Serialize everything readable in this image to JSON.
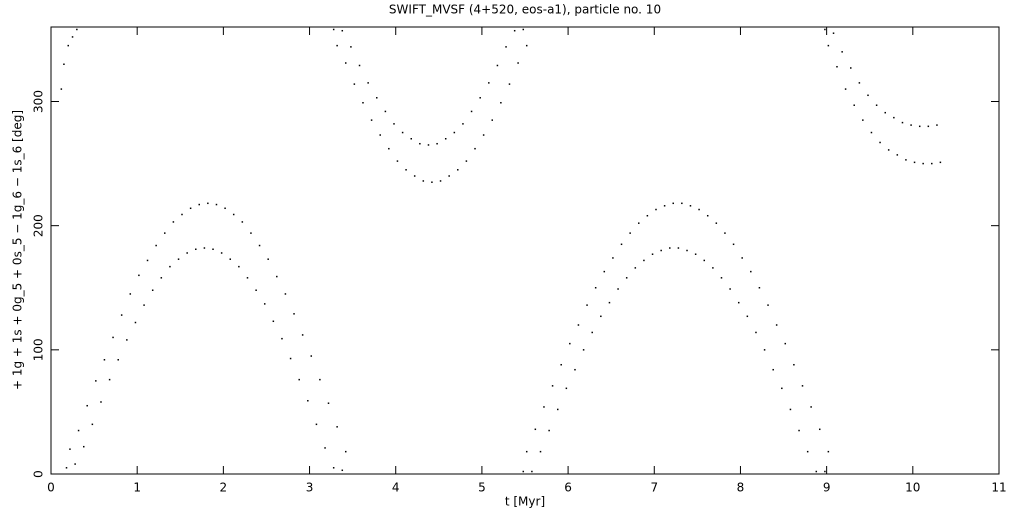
{
  "chart_data": {
    "type": "scatter",
    "title": "SWIFT_MVSF (4+520, eos-a1), particle no. 10",
    "xlabel": "t [Myr]",
    "ylabel": "+ 1g + 1s + 0g_5 + 0s_5 − 1g_6 − 1s_6 [deg]",
    "color": "#000000",
    "xlim": [
      0,
      11
    ],
    "ylim": [
      0,
      360
    ],
    "xticks": [
      0,
      1,
      2,
      3,
      4,
      5,
      6,
      7,
      8,
      9,
      10,
      11
    ],
    "yticks": [
      0,
      100,
      200,
      300
    ],
    "x": [
      0.12,
      0.15,
      0.2,
      0.25,
      0.3,
      0.18,
      0.22,
      0.28,
      0.32,
      0.38,
      0.42,
      0.48,
      0.52,
      0.58,
      0.62,
      0.68,
      0.72,
      0.78,
      0.82,
      0.88,
      0.92,
      0.98,
      1.02,
      1.08,
      1.12,
      1.18,
      1.22,
      1.28,
      1.32,
      1.38,
      1.42,
      1.48,
      1.52,
      1.58,
      1.62,
      1.68,
      1.72,
      1.78,
      1.82,
      1.88,
      1.92,
      1.98,
      2.02,
      2.08,
      2.12,
      2.18,
      2.22,
      2.28,
      2.32,
      2.38,
      2.42,
      2.48,
      2.52,
      2.58,
      2.62,
      2.68,
      2.72,
      2.78,
      2.82,
      2.88,
      2.92,
      2.98,
      3.02,
      3.08,
      3.12,
      3.18,
      3.22,
      3.28,
      3.32,
      3.38,
      3.42,
      3.28,
      3.32,
      3.38,
      3.42,
      3.48,
      3.52,
      3.58,
      3.62,
      3.68,
      3.72,
      3.78,
      3.82,
      3.88,
      3.92,
      3.98,
      4.02,
      4.08,
      4.12,
      4.18,
      4.22,
      4.28,
      4.32,
      4.38,
      4.42,
      4.48,
      4.52,
      4.58,
      4.62,
      4.68,
      4.72,
      4.78,
      4.82,
      4.88,
      4.92,
      4.98,
      5.02,
      5.08,
      5.12,
      5.18,
      5.22,
      5.28,
      5.32,
      5.38,
      5.42,
      5.48,
      5.52,
      5.48,
      5.52,
      5.58,
      5.62,
      5.68,
      5.72,
      5.78,
      5.82,
      5.88,
      5.92,
      5.98,
      6.02,
      6.08,
      6.12,
      6.18,
      6.22,
      6.28,
      6.32,
      6.38,
      6.42,
      6.48,
      6.52,
      6.58,
      6.62,
      6.68,
      6.72,
      6.78,
      6.82,
      6.88,
      6.92,
      6.98,
      7.02,
      7.08,
      7.12,
      7.18,
      7.22,
      7.28,
      7.32,
      7.38,
      7.42,
      7.48,
      7.52,
      7.58,
      7.62,
      7.68,
      7.72,
      7.78,
      7.82,
      7.88,
      7.92,
      7.98,
      8.02,
      8.08,
      8.12,
      8.18,
      8.22,
      8.28,
      8.32,
      8.38,
      8.42,
      8.48,
      8.52,
      8.58,
      8.62,
      8.68,
      8.72,
      8.78,
      8.82,
      8.88,
      8.92,
      8.98,
      9.02,
      8.98,
      9.02,
      9.08,
      9.12,
      9.18,
      9.22,
      9.28,
      9.32,
      9.38,
      9.42,
      9.48,
      9.52,
      9.58,
      9.62,
      9.68,
      9.72,
      9.78,
      9.82,
      9.88,
      9.92,
      9.98,
      10.02,
      10.08,
      10.12,
      10.18,
      10.22,
      10.28,
      10.32
    ],
    "values": [
      310,
      330,
      345,
      352,
      358,
      5,
      20,
      8,
      35,
      22,
      55,
      40,
      75,
      58,
      92,
      76,
      110,
      92,
      128,
      108,
      145,
      122,
      160,
      136,
      172,
      148,
      184,
      158,
      194,
      167,
      203,
      173,
      209,
      178,
      214,
      181,
      217,
      182,
      218,
      181,
      217,
      178,
      214,
      173,
      209,
      167,
      203,
      158,
      194,
      148,
      184,
      137,
      173,
      123,
      159,
      109,
      145,
      93,
      129,
      76,
      112,
      59,
      95,
      40,
      76,
      21,
      57,
      5,
      38,
      3,
      18,
      358,
      345,
      357,
      331,
      344,
      314,
      329,
      299,
      315,
      285,
      303,
      273,
      292,
      262,
      282,
      252,
      275,
      245,
      270,
      240,
      266,
      236,
      265,
      235,
      266,
      236,
      270,
      240,
      275,
      245,
      282,
      252,
      292,
      262,
      303,
      273,
      315,
      285,
      329,
      299,
      344,
      314,
      357,
      331,
      358,
      345,
      2,
      18,
      2,
      36,
      18,
      54,
      35,
      71,
      52,
      88,
      69,
      105,
      84,
      120,
      100,
      136,
      114,
      150,
      127,
      163,
      138,
      174,
      149,
      185,
      158,
      194,
      166,
      202,
      172,
      208,
      177,
      213,
      180,
      216,
      182,
      218,
      182,
      218,
      180,
      216,
      177,
      213,
      172,
      208,
      166,
      202,
      158,
      194,
      149,
      185,
      138,
      174,
      127,
      163,
      114,
      150,
      100,
      136,
      84,
      120,
      69,
      105,
      52,
      88,
      35,
      71,
      18,
      54,
      2,
      36,
      2,
      18,
      358,
      345,
      355,
      328,
      340,
      310,
      327,
      297,
      315,
      285,
      305,
      275,
      297,
      267,
      291,
      261,
      287,
      257,
      283,
      253,
      281,
      251,
      280,
      250,
      280,
      250,
      281,
      251
    ]
  }
}
